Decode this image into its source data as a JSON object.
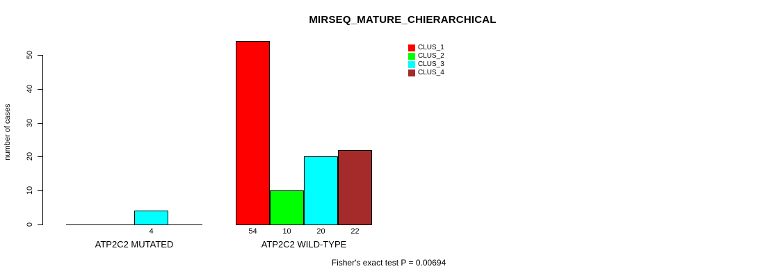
{
  "chart_data": {
    "type": "bar",
    "title": "MIRSEQ_MATURE_CHIERARCHICAL",
    "xlabel": "",
    "ylabel": "number of cases",
    "ylim": [
      0,
      50
    ],
    "yticks": [
      0,
      10,
      20,
      30,
      40,
      50
    ],
    "grid": false,
    "legend_position": "top-right-inside",
    "categories": [
      "ATP2C2 MUTATED",
      "ATP2C2 WILD-TYPE"
    ],
    "series": [
      {
        "name": "CLUS_1",
        "color": "#ff0000",
        "values": [
          0,
          54
        ]
      },
      {
        "name": "CLUS_2",
        "color": "#00ff00",
        "values": [
          0,
          10
        ]
      },
      {
        "name": "CLUS_3",
        "color": "#00ffff",
        "values": [
          4,
          20
        ]
      },
      {
        "name": "CLUS_4",
        "color": "#a52a2a",
        "values": [
          0,
          22
        ]
      }
    ],
    "bar_value_labels": [
      [
        "",
        "",
        "4",
        ""
      ],
      [
        "54",
        "10",
        "20",
        "22"
      ]
    ],
    "annotation": "Fisher's exact test P = 0.00694"
  },
  "colors": {
    "background": "#ffffff",
    "axis": "#000000",
    "text": "#000000",
    "clus_1": "#ff0000",
    "clus_2": "#00ff00",
    "clus_3": "#00ffff",
    "clus_4": "#a52a2a"
  }
}
